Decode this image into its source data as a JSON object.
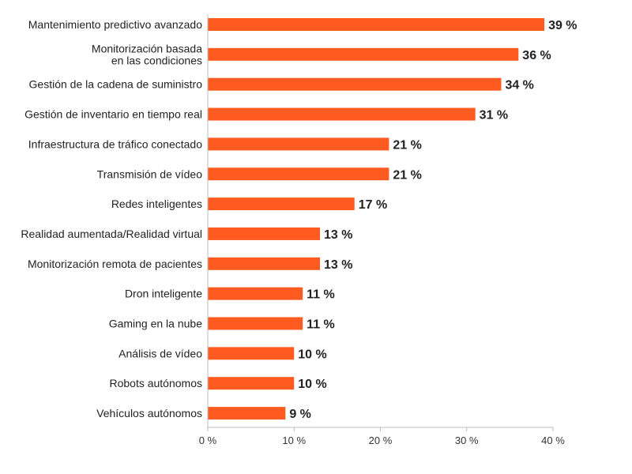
{
  "chart_data": {
    "type": "bar",
    "orientation": "horizontal",
    "title": "",
    "xlabel": "",
    "ylabel": "",
    "xlim": [
      0,
      40
    ],
    "bar_color": "#ff5a1f",
    "grid": false,
    "legend": "none",
    "categories": [
      "Mantenimiento predictivo avanzado",
      "Monitorización basada\nen las condiciones",
      "Gestión de la cadena de suministro",
      "Gestión de inventario en tiempo real",
      "Infraestructura de tráfico conectado",
      "Transmisión de vídeo",
      "Redes inteligentes",
      "Realidad aumentada/Realidad virtual",
      "Monitorización remota de pacientes",
      "Dron inteligente",
      "Gaming en la nube",
      "Análisis de vídeo",
      "Robots autónomos",
      "Vehículos autónomos"
    ],
    "values": [
      39,
      36,
      34,
      31,
      21,
      21,
      17,
      13,
      13,
      11,
      11,
      10,
      10,
      9
    ],
    "value_labels": [
      "39 %",
      "36 %",
      "34 %",
      "31 %",
      "21 %",
      "21 %",
      "17 %",
      "13 %",
      "13 %",
      "11 %",
      "11 %",
      "10 %",
      "10 %",
      "9 %"
    ],
    "x_ticks": [
      0,
      10,
      20,
      30,
      40
    ],
    "x_tick_labels": [
      "0 %",
      "10 %",
      "20 %",
      "30 %",
      "40 %"
    ]
  }
}
